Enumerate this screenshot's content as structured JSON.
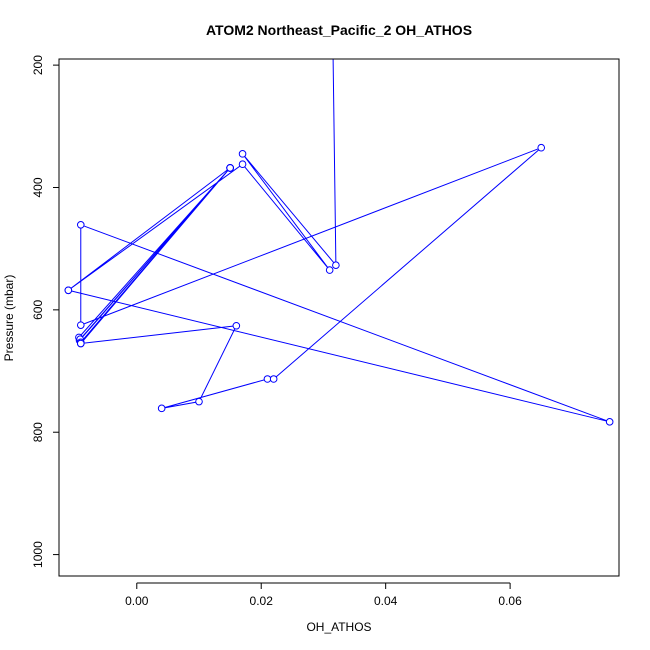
{
  "chart_data": {
    "type": "line",
    "title": "ATOM2 Northeast_Pacific_2 OH_ATHOS",
    "xlabel": "OH_ATHOS",
    "ylabel": "Pressure (mbar)",
    "xlim": [
      -0.0125,
      0.0775
    ],
    "ylim": [
      1035,
      190
    ],
    "y_reversed": true,
    "x_ticks": [
      0.0,
      0.02,
      0.04,
      0.06
    ],
    "x_tick_labels": [
      "0.00",
      "0.02",
      "0.04",
      "0.06"
    ],
    "y_ticks": [
      200,
      400,
      600,
      800,
      1000
    ],
    "y_tick_labels": [
      "200",
      "400",
      "600",
      "800",
      "1000"
    ],
    "grid": false,
    "legend": "none",
    "series": [
      {
        "color": "#0000ff",
        "marker": "open-circle",
        "points": [
          {
            "x": 0.0315,
            "y": 150
          },
          {
            "x": 0.032,
            "y": 527
          },
          {
            "x": 0.017,
            "y": 345
          },
          {
            "x": 0.031,
            "y": 535
          },
          {
            "x": 0.017,
            "y": 362
          },
          {
            "x": -0.011,
            "y": 568
          },
          {
            "x": 0.015,
            "y": 368
          },
          {
            "x": -0.009,
            "y": 655
          },
          {
            "x": 0.015,
            "y": 368
          },
          {
            "x": -0.0092,
            "y": 650
          },
          {
            "x": 0.015,
            "y": 368
          },
          {
            "x": -0.0093,
            "y": 645
          },
          {
            "x": 0.015,
            "y": 368
          },
          {
            "x": -0.0091,
            "y": 648
          },
          {
            "x": 0.015,
            "y": 368
          },
          {
            "x": -0.009,
            "y": 653
          },
          {
            "x": 0.015,
            "y": 368
          },
          {
            "x": -0.009,
            "y": 655
          },
          {
            "x": 0.016,
            "y": 626
          },
          {
            "x": 0.01,
            "y": 750
          },
          {
            "x": 0.004,
            "y": 761
          },
          {
            "x": 0.021,
            "y": 713
          },
          {
            "x": 0.022,
            "y": 713
          },
          {
            "x": 0.065,
            "y": 335
          },
          {
            "x": -0.009,
            "y": 625
          },
          {
            "x": -0.009,
            "y": 461
          },
          {
            "x": 0.076,
            "y": 783
          },
          {
            "x": -0.011,
            "y": 568
          }
        ]
      }
    ]
  }
}
